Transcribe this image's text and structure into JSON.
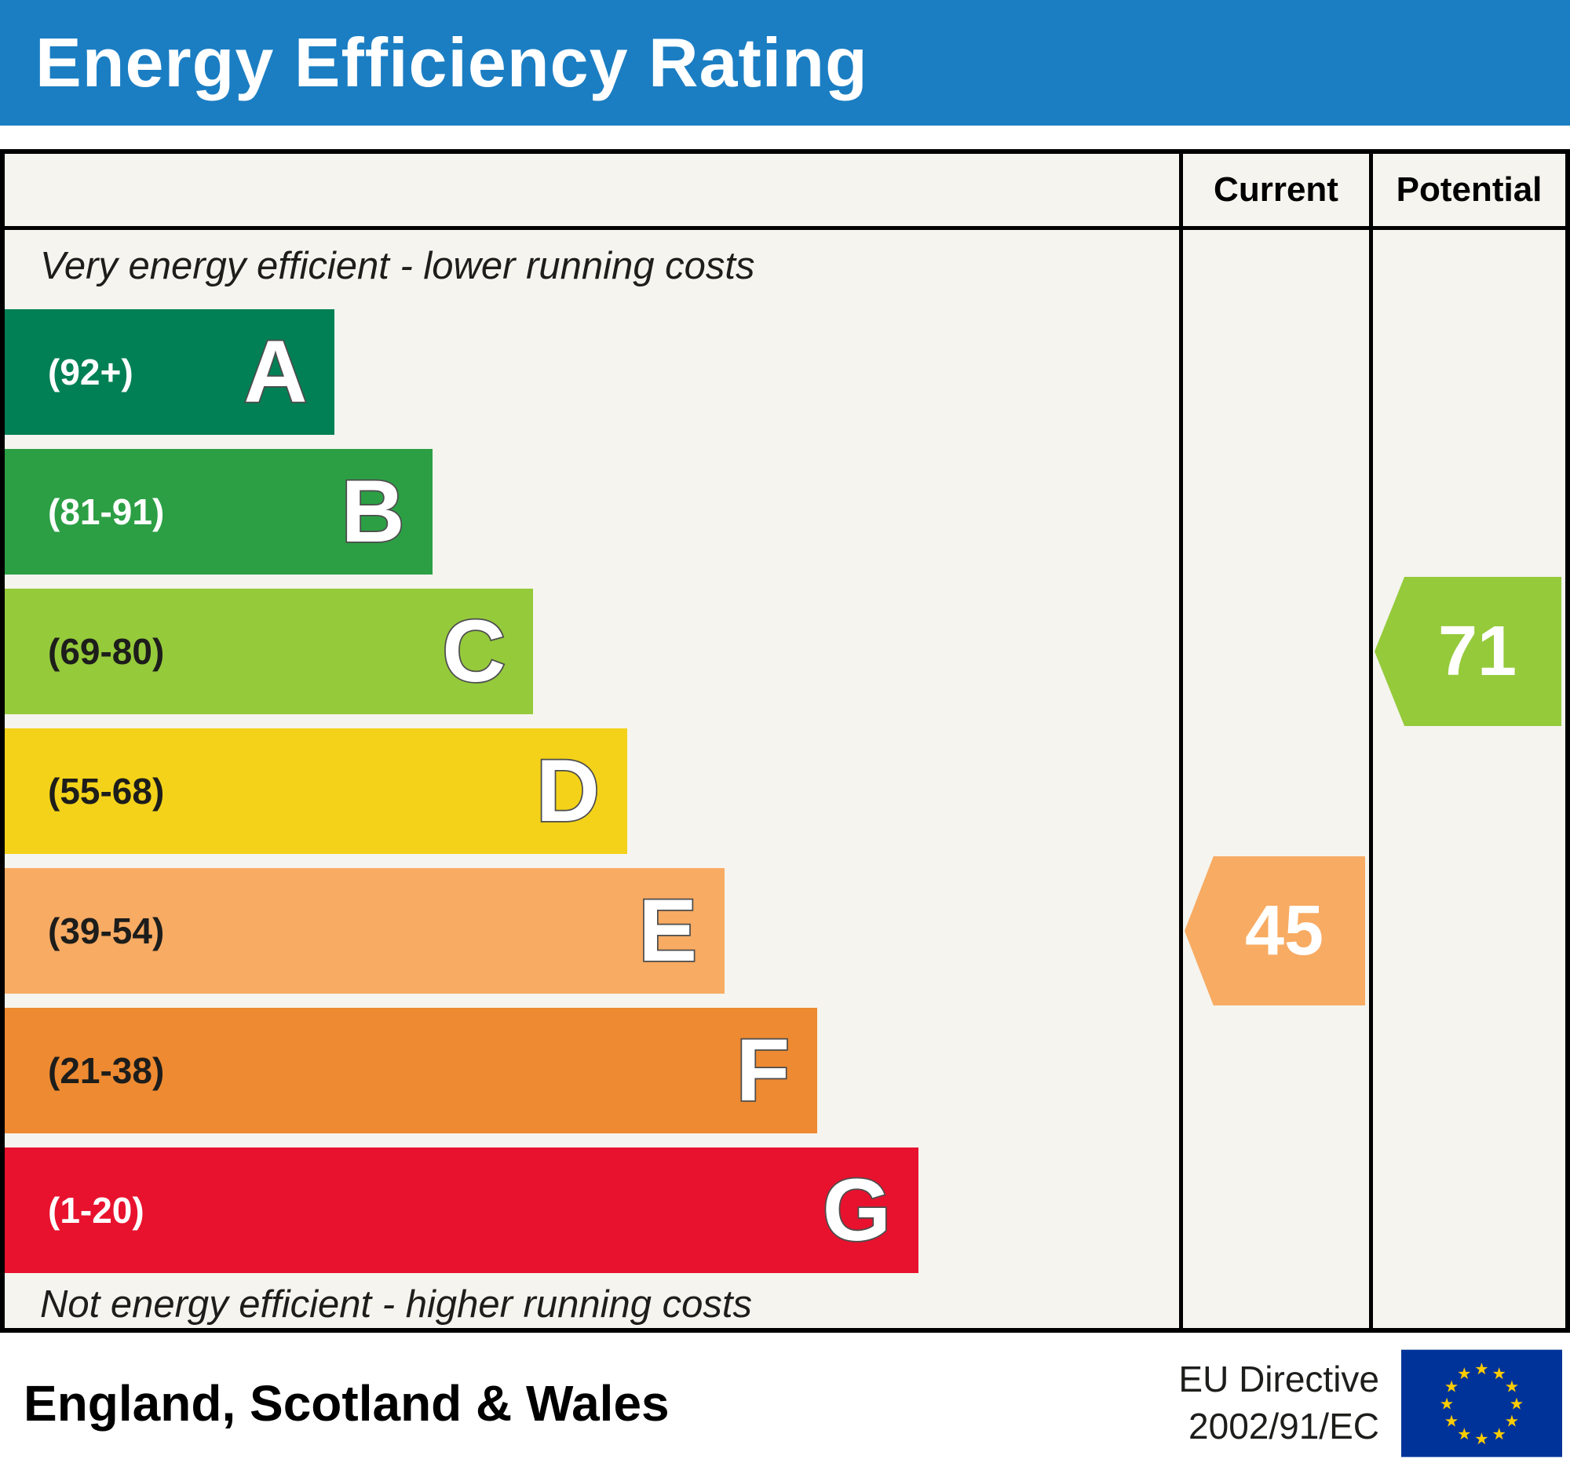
{
  "header": {
    "title": "Energy Efficiency Rating"
  },
  "columns": {
    "current": "Current",
    "potential": "Potential"
  },
  "notes": {
    "top": "Very energy efficient - lower running costs",
    "bottom": "Not energy efficient - higher running costs"
  },
  "bands": [
    {
      "letter": "A",
      "range": "(92+)",
      "color": "#008054",
      "label_color": "#ffffff",
      "width_pct": 28.1
    },
    {
      "letter": "B",
      "range": "(81-91)",
      "color": "#2c9f45",
      "label_color": "#ffffff",
      "width_pct": 36.4
    },
    {
      "letter": "C",
      "range": "(69-80)",
      "color": "#95ca3b",
      "label_color": "#1d1d1b",
      "width_pct": 45.0
    },
    {
      "letter": "D",
      "range": "(55-68)",
      "color": "#f3d219",
      "label_color": "#1d1d1b",
      "width_pct": 53.0
    },
    {
      "letter": "E",
      "range": "(39-54)",
      "color": "#f8ab63",
      "label_color": "#1d1d1b",
      "width_pct": 61.3
    },
    {
      "letter": "F",
      "range": "(21-38)",
      "color": "#ee8a31",
      "label_color": "#1d1d1b",
      "width_pct": 69.2
    },
    {
      "letter": "G",
      "range": "(1-20)",
      "color": "#e8122e",
      "label_color": "#ffffff",
      "width_pct": 77.8
    }
  ],
  "ratings": {
    "current": {
      "value": "45",
      "band": "E",
      "color": "#f8ab63"
    },
    "potential": {
      "value": "71",
      "band": "C",
      "color": "#95ca3b"
    }
  },
  "footer": {
    "region": "England, Scotland & Wales",
    "directive_line1": "EU Directive",
    "directive_line2": "2002/91/EC",
    "eu_flag_blue": "#003399",
    "eu_flag_star": "#ffcc00"
  },
  "chart_data": {
    "type": "bar",
    "title": "Energy Efficiency Rating",
    "categories": [
      "A (92+)",
      "B (81-91)",
      "C (69-80)",
      "D (55-68)",
      "E (39-54)",
      "F (21-38)",
      "G (1-20)"
    ],
    "values": [
      28.1,
      36.4,
      45.0,
      53.0,
      61.3,
      69.2,
      77.8
    ],
    "value_meaning": "relative bar width percent of chart column",
    "band_colors": [
      "#008054",
      "#2c9f45",
      "#95ca3b",
      "#f3d219",
      "#f8ab63",
      "#ee8a31",
      "#e8122e"
    ],
    "current_rating": 45,
    "current_band": "E",
    "potential_rating": 71,
    "potential_band": "C",
    "annotations": [
      "Very energy efficient - lower running costs",
      "Not energy efficient - higher running costs"
    ],
    "columns": [
      "Current",
      "Potential"
    ],
    "region": "England, Scotland & Wales",
    "directive": "EU Directive 2002/91/EC"
  }
}
